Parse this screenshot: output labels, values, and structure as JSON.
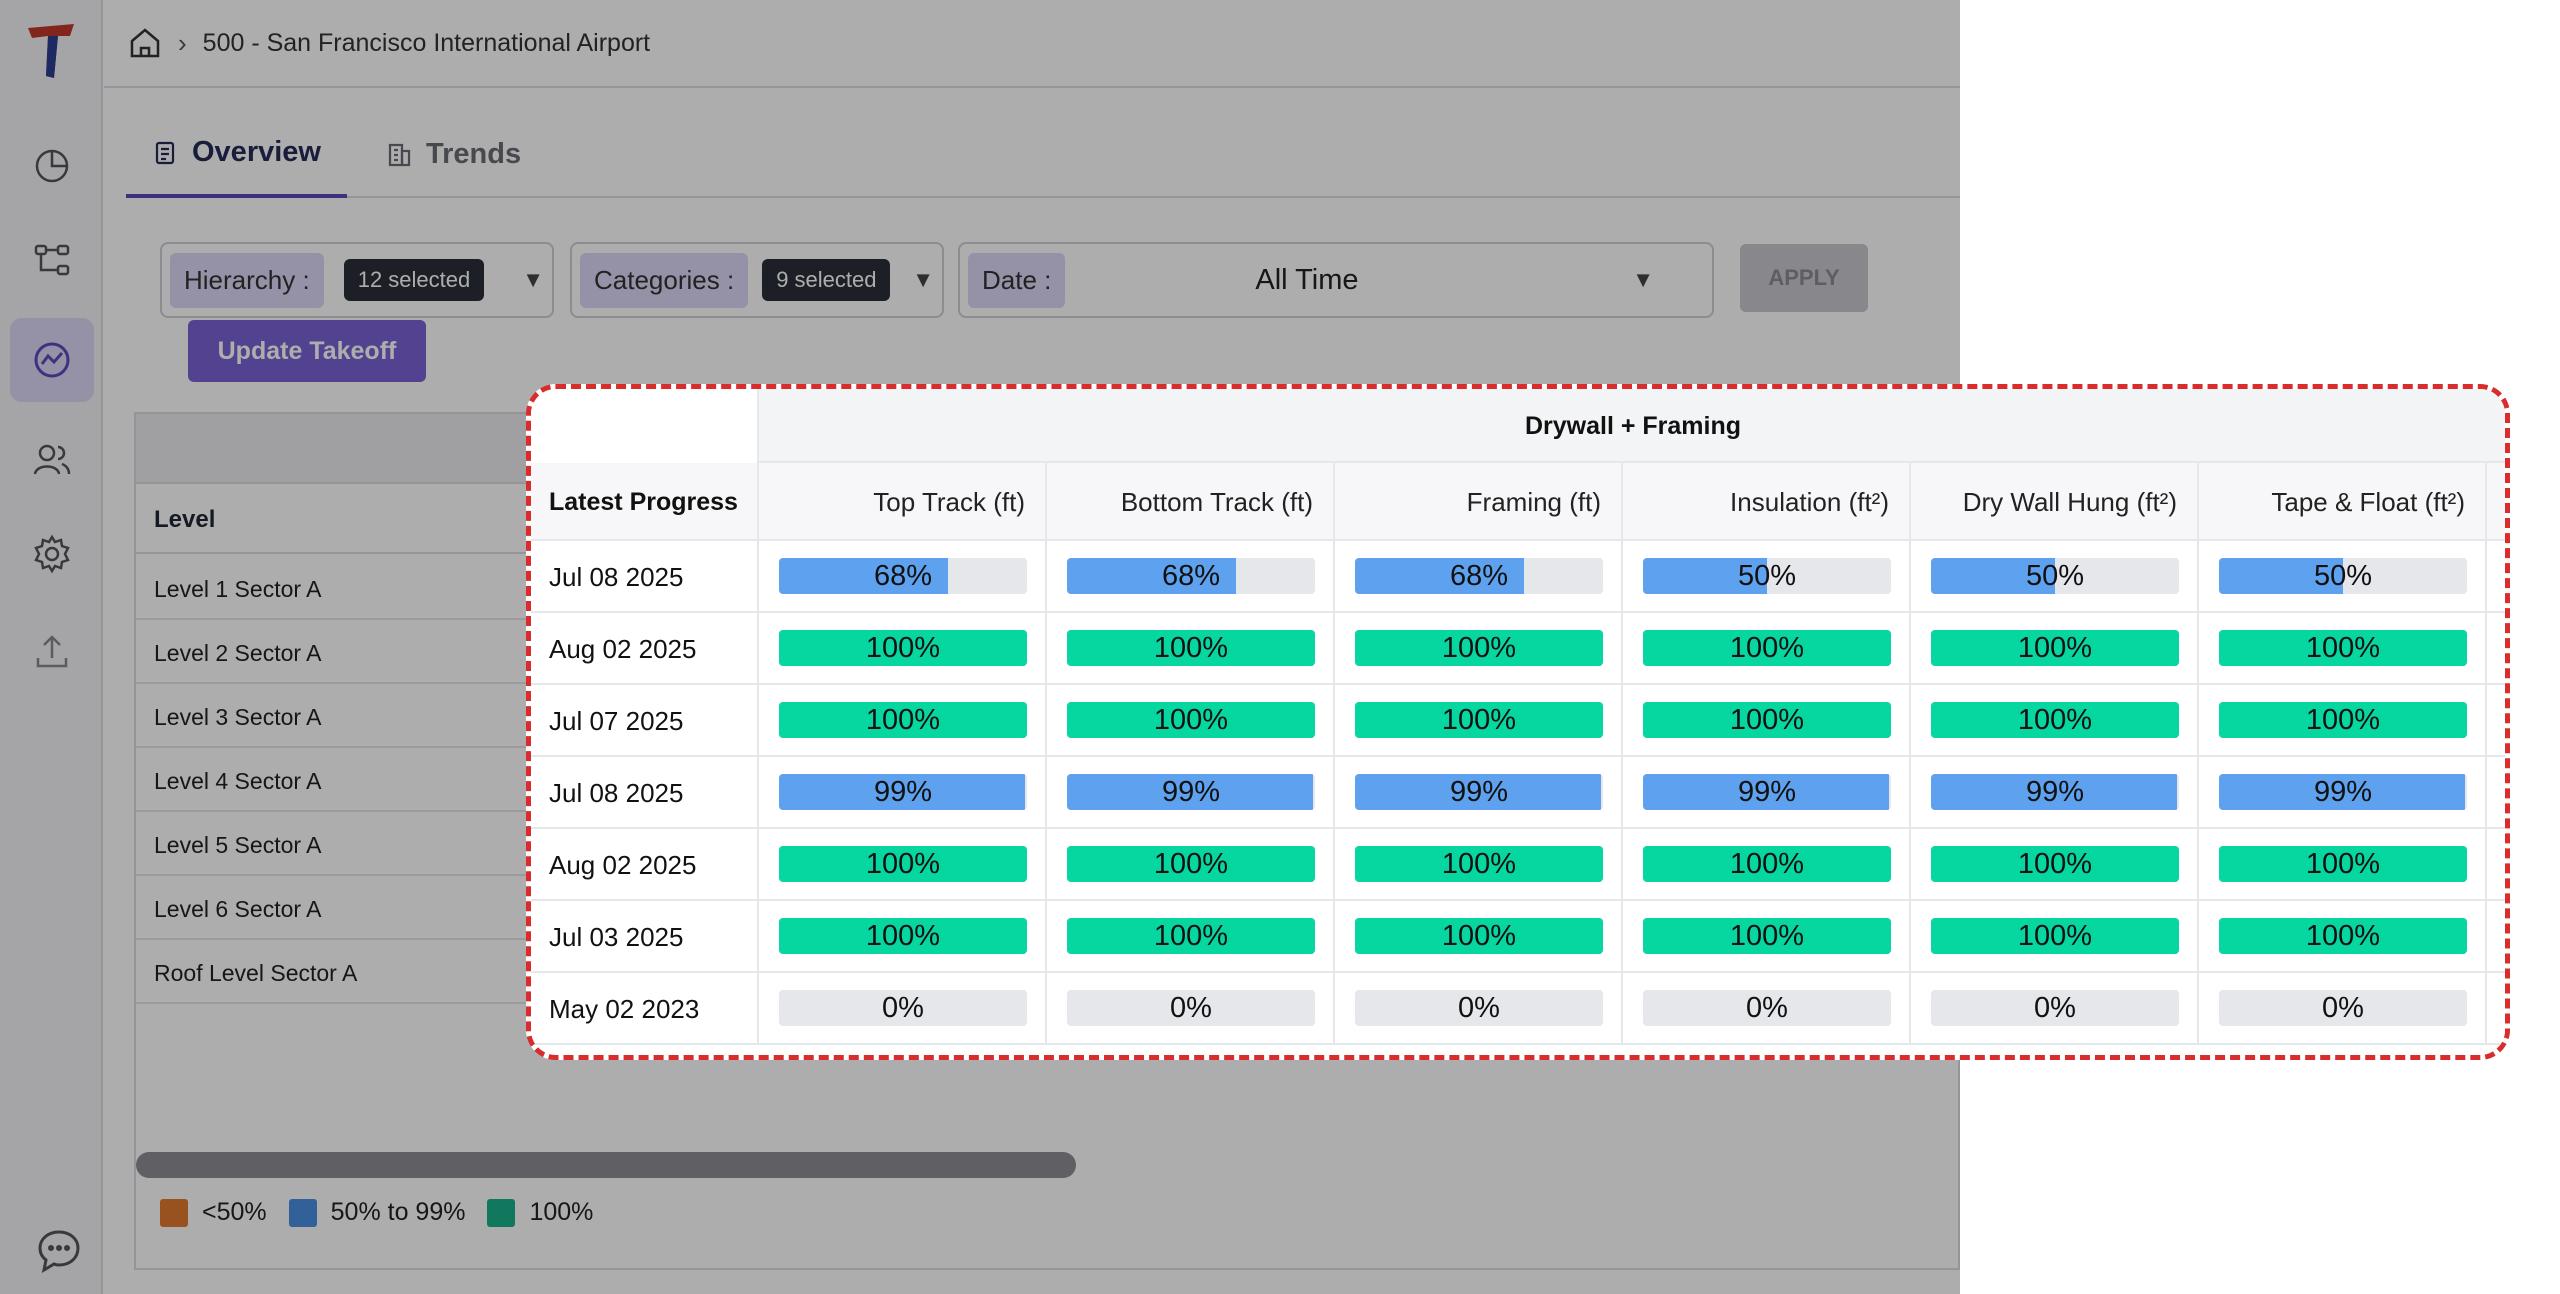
{
  "breadcrumb": {
    "project": "500 - San Francisco International Airport"
  },
  "tabs": [
    {
      "label": "Overview",
      "active": true
    },
    {
      "label": "Trends",
      "active": false
    }
  ],
  "filters": {
    "hierarchy": {
      "label": "Hierarchy :",
      "chip": "12 selected"
    },
    "categories": {
      "label": "Categories :",
      "chip": "9 selected"
    },
    "date": {
      "label": "Date :",
      "value": "All Time"
    },
    "apply_label": "APPLY"
  },
  "update_button": "Update Takeoff",
  "levels_table": {
    "header": "Level",
    "rows": [
      "Level 1 Sector A",
      "Level 2 Sector A",
      "Level 3 Sector A",
      "Level 4 Sector A",
      "Level 5 Sector A",
      "Level 6 Sector A",
      "Roof Level Sector A"
    ]
  },
  "legend": [
    {
      "label": "<50%",
      "color": "#e07a2e"
    },
    {
      "label": "50% to 99%",
      "color": "#4a90e2"
    },
    {
      "label": "100%",
      "color": "#19b38a"
    }
  ],
  "progress_table": {
    "group_title": "Drywall + Framing",
    "row_header": "Latest Progress",
    "columns": [
      "Top Track (ft)",
      "Bottom Track (ft)",
      "Framing (ft)",
      "Insulation (ft²)",
      "Dry Wall Hung (ft²)",
      "Tape & Float (ft²)"
    ],
    "rows": [
      {
        "date": "Jul 08 2025",
        "values": [
          68,
          68,
          68,
          50,
          50,
          50
        ]
      },
      {
        "date": "Aug 02 2025",
        "values": [
          100,
          100,
          100,
          100,
          100,
          100
        ]
      },
      {
        "date": "Jul 07 2025",
        "values": [
          100,
          100,
          100,
          100,
          100,
          100
        ]
      },
      {
        "date": "Jul 08 2025",
        "values": [
          99,
          99,
          99,
          99,
          99,
          99
        ]
      },
      {
        "date": "Aug 02 2025",
        "values": [
          100,
          100,
          100,
          100,
          100,
          100
        ]
      },
      {
        "date": "Jul 03 2025",
        "values": [
          100,
          100,
          100,
          100,
          100,
          100
        ]
      },
      {
        "date": "May 02 2023",
        "values": [
          0,
          0,
          0,
          0,
          0,
          0
        ]
      }
    ]
  },
  "colors": {
    "complete": "#06d6a0",
    "partial": "#5ea1ef",
    "empty": "#e5e7eb",
    "accent": "#5b4bb8",
    "highlight_border": "#d92d2d"
  }
}
